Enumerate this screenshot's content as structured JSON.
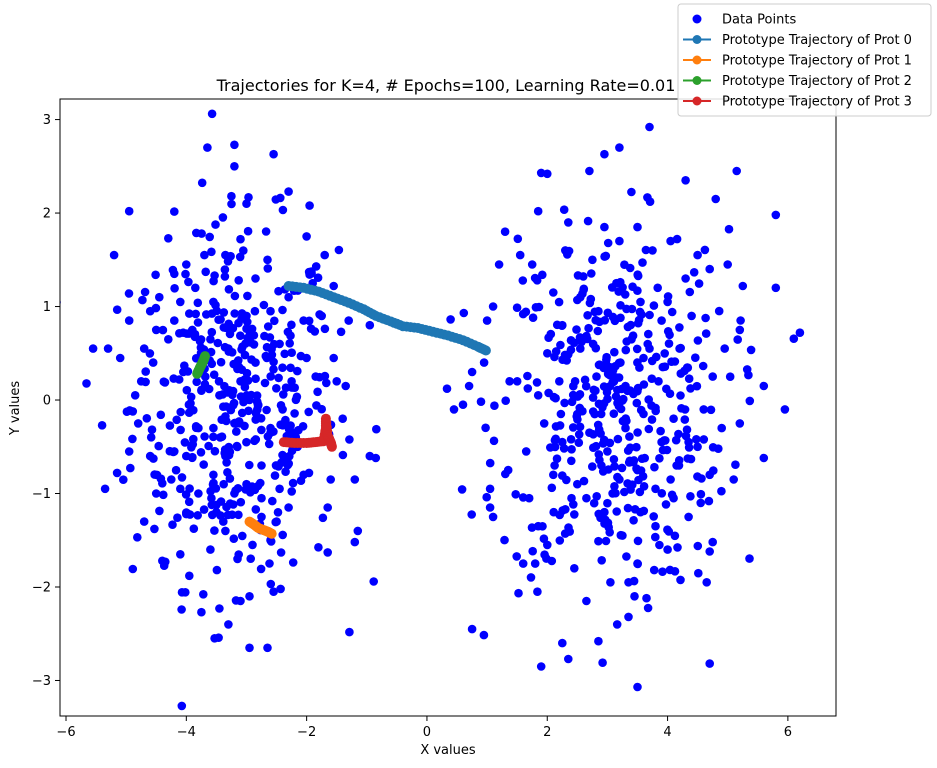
{
  "chart_data": {
    "type": "scatter",
    "title": "Trajectories for K=4, # Epochs=100, Learning Rate=0.01",
    "xlabel": "X values",
    "ylabel": "Y values",
    "xlim": [
      -6.1,
      6.8
    ],
    "ylim": [
      -3.38,
      3.22
    ],
    "xticks": [
      -6,
      -4,
      -2,
      0,
      2,
      4,
      6
    ],
    "yticks": [
      -3,
      -2,
      -1,
      0,
      1,
      2,
      3
    ],
    "grid": false,
    "legend_position": "top-right",
    "series": [
      {
        "name": "Data Points",
        "kind": "scatter",
        "color": "#0000ff",
        "clusters": [
          {
            "center": [
              -3.2,
              -0.05
            ],
            "spread": [
              0.85,
              0.95
            ],
            "count": 400
          },
          {
            "center": [
              3.1,
              -0.1
            ],
            "spread": [
              0.95,
              0.95
            ],
            "count": 400
          }
        ],
        "points": [
          [
            -5.55,
            0.55
          ],
          [
            -5.4,
            -0.27
          ],
          [
            -5.35,
            -0.95
          ],
          [
            -5.3,
            0.55
          ],
          [
            -5.2,
            1.55
          ],
          [
            -5.15,
            -0.78
          ],
          [
            -4.95,
            2.02
          ],
          [
            -4.85,
            0.05
          ],
          [
            -4.7,
            -1.3
          ],
          [
            -4.6,
            0.95
          ],
          [
            -4.4,
            -1.72
          ],
          [
            -4.3,
            1.73
          ],
          [
            -4.2,
            -0.55
          ],
          [
            -3.65,
            2.7
          ],
          [
            -3.2,
            2.73
          ],
          [
            -3.2,
            2.5
          ],
          [
            -3.25,
            2.18
          ],
          [
            -3.0,
            2.1
          ],
          [
            -2.55,
            2.63
          ],
          [
            -2.3,
            2.23
          ],
          [
            -1.95,
            2.08
          ],
          [
            -2.0,
            1.75
          ],
          [
            -1.7,
            1.55
          ],
          [
            -1.55,
            1.22
          ],
          [
            -1.3,
            0.85
          ],
          [
            -1.2,
            -0.85
          ],
          [
            -1.2,
            -1.52
          ],
          [
            -1.15,
            -1.4
          ],
          [
            -0.95,
            -0.6
          ],
          [
            -0.85,
            -0.62
          ],
          [
            -0.95,
            0.8
          ],
          [
            -2.0,
            0.45
          ],
          [
            -1.85,
            0.25
          ],
          [
            -1.7,
            -0.35
          ],
          [
            -1.5,
            0.2
          ],
          [
            -1.4,
            -0.2
          ],
          [
            -1.6,
            -0.85
          ],
          [
            -1.65,
            -1.15
          ],
          [
            -1.65,
            -1.63
          ],
          [
            -2.5,
            -1.3
          ],
          [
            -2.6,
            -1.5
          ],
          [
            -2.55,
            -2.05
          ],
          [
            -2.65,
            -2.65
          ],
          [
            -2.95,
            -2.65
          ],
          [
            -2.95,
            -2.1
          ],
          [
            -3.1,
            -2.15
          ],
          [
            -3.3,
            -2.4
          ],
          [
            -3.45,
            -2.23
          ],
          [
            -3.6,
            -1.6
          ],
          [
            -3.75,
            -2.27
          ],
          [
            -3.95,
            -1.88
          ],
          [
            -4.1,
            -1.65
          ],
          [
            -4.35,
            -1.73
          ],
          [
            -4.0,
            -1.22
          ],
          [
            -4.1,
            -0.95
          ],
          [
            -3.8,
            -1.0
          ],
          [
            -3.5,
            -1.2
          ],
          [
            -3.2,
            -1.0
          ],
          [
            -3.0,
            -0.9
          ],
          [
            -2.75,
            -0.7
          ],
          [
            -2.6,
            -0.3
          ],
          [
            -2.4,
            -0.1
          ],
          [
            -2.25,
            0.2
          ],
          [
            -2.15,
            -0.5
          ],
          [
            -2.05,
            -0.8
          ],
          [
            -2.3,
            -1.15
          ],
          [
            -2.75,
            -1.05
          ],
          [
            -3.35,
            -0.6
          ],
          [
            -3.55,
            -0.3
          ],
          [
            -3.75,
            0.1
          ],
          [
            -4.05,
            0.3
          ],
          [
            -4.3,
            0.65
          ],
          [
            -4.55,
            0.4
          ],
          [
            -4.75,
            0.2
          ],
          [
            -4.95,
            0.85
          ],
          [
            -5.1,
            0.45
          ],
          [
            -4.2,
            1.35
          ],
          [
            -4.0,
            1.45
          ],
          [
            -3.85,
            1.2
          ],
          [
            -3.55,
            1.05
          ],
          [
            -3.35,
            1.55
          ],
          [
            -3.1,
            1.72
          ],
          [
            -2.85,
            1.3
          ],
          [
            -2.6,
            0.95
          ],
          [
            -2.45,
            0.6
          ],
          [
            -2.85,
            0.4
          ],
          [
            -3.1,
            0.2
          ],
          [
            -3.3,
            0.55
          ],
          [
            -3.6,
            0.65
          ],
          [
            -3.9,
            0.75
          ],
          [
            -4.2,
            0.85
          ],
          [
            -4.5,
            0.75
          ],
          [
            -4.7,
            0.55
          ],
          [
            -3.8,
            -0.3
          ],
          [
            -4.0,
            -0.6
          ],
          [
            -4.25,
            -0.85
          ],
          [
            -4.5,
            -1.0
          ],
          [
            -4.6,
            -0.6
          ],
          [
            -4.8,
            -0.25
          ],
          [
            -3.55,
            -0.8
          ],
          [
            -3.35,
            -1.4
          ],
          [
            -3.15,
            -1.7
          ],
          [
            -2.9,
            -1.55
          ],
          [
            -2.75,
            -1.25
          ],
          [
            -2.45,
            -0.95
          ],
          [
            -2.2,
            -0.35
          ],
          [
            -2.95,
            0.0
          ],
          [
            -3.2,
            -0.25
          ],
          [
            -3.45,
            0.05
          ],
          [
            -2.05,
            0.85
          ],
          [
            -1.75,
            0.9
          ],
          [
            -1.55,
            0.45
          ],
          [
            -1.35,
            0.15
          ],
          [
            -1.9,
            1.25
          ],
          [
            -2.3,
            1.1
          ],
          [
            -2.65,
            1.5
          ],
          [
            -3.0,
            0.9
          ],
          [
            -3.7,
            1.55
          ],
          [
            -4.1,
            1.05
          ],
          [
            -4.45,
            1.1
          ],
          [
            1.9,
            -2.85
          ],
          [
            2.25,
            -2.6
          ],
          [
            2.35,
            -2.77
          ],
          [
            2.85,
            -2.58
          ],
          [
            3.5,
            -3.07
          ],
          [
            4.7,
            -2.82
          ],
          [
            0.75,
            -2.45
          ],
          [
            1.85,
            -1.35
          ],
          [
            2.0,
            -1.55
          ],
          [
            2.45,
            -1.8
          ],
          [
            2.65,
            -2.15
          ],
          [
            3.05,
            -1.95
          ],
          [
            3.35,
            -1.95
          ],
          [
            3.35,
            -2.32
          ],
          [
            3.45,
            -2.1
          ],
          [
            3.65,
            -2.12
          ],
          [
            3.5,
            -1.75
          ],
          [
            4.0,
            -1.6
          ],
          [
            4.65,
            -1.95
          ],
          [
            4.7,
            -1.62
          ],
          [
            4.75,
            -1.52
          ],
          [
            1.05,
            -1.15
          ],
          [
            1.1,
            -1.25
          ],
          [
            1.05,
            -0.95
          ],
          [
            1.35,
            -0.75
          ],
          [
            1.6,
            -1.75
          ],
          [
            1.8,
            -1.75
          ],
          [
            1.7,
            -1.05
          ],
          [
            2.1,
            -0.8
          ],
          [
            2.5,
            -0.9
          ],
          [
            2.9,
            -0.7
          ],
          [
            3.2,
            -0.85
          ],
          [
            3.5,
            -0.75
          ],
          [
            3.8,
            -0.95
          ],
          [
            4.1,
            -1.05
          ],
          [
            4.35,
            -1.25
          ],
          [
            4.55,
            -1.1
          ],
          [
            4.7,
            -0.8
          ],
          [
            5.1,
            -0.85
          ],
          [
            4.9,
            -0.3
          ],
          [
            5.2,
            -0.25
          ],
          [
            5.6,
            -0.62
          ],
          [
            5.95,
            -0.1
          ],
          [
            0.45,
            -0.1
          ],
          [
            0.6,
            -0.05
          ],
          [
            0.7,
            0.15
          ],
          [
            0.75,
            0.3
          ],
          [
            0.95,
            0.4
          ],
          [
            1.0,
            0.85
          ],
          [
            1.1,
            1.0
          ],
          [
            1.2,
            1.45
          ],
          [
            1.3,
            1.8
          ],
          [
            1.55,
            1.55
          ],
          [
            1.75,
            1.45
          ],
          [
            1.85,
            2.02
          ],
          [
            1.9,
            2.43
          ],
          [
            2.0,
            2.42
          ],
          [
            2.3,
            1.6
          ],
          [
            2.35,
            1.9
          ],
          [
            2.7,
            2.45
          ],
          [
            2.95,
            2.63
          ],
          [
            3.2,
            2.7
          ],
          [
            3.7,
            2.92
          ],
          [
            4.3,
            2.35
          ],
          [
            4.5,
            1.55
          ],
          [
            4.8,
            2.15
          ],
          [
            5.15,
            2.45
          ],
          [
            5.25,
            1.22
          ],
          [
            5.8,
            1.98
          ],
          [
            5.8,
            1.2
          ],
          [
            6.2,
            0.72
          ],
          [
            5.6,
            0.15
          ],
          [
            5.2,
            0.75
          ],
          [
            4.95,
            0.55
          ],
          [
            5.0,
            1.45
          ],
          [
            4.7,
            1.4
          ],
          [
            4.3,
            1.3
          ],
          [
            4.05,
            1.7
          ],
          [
            3.75,
            1.6
          ],
          [
            3.5,
            1.85
          ],
          [
            3.2,
            1.7
          ],
          [
            2.95,
            1.85
          ],
          [
            2.75,
            1.5
          ],
          [
            2.55,
            1.1
          ],
          [
            2.25,
            0.8
          ],
          [
            2.0,
            0.5
          ],
          [
            2.2,
            0.2
          ],
          [
            2.5,
            -0.15
          ],
          [
            2.8,
            0.1
          ],
          [
            3.05,
            0.35
          ],
          [
            3.3,
            0.15
          ],
          [
            3.6,
            0.45
          ],
          [
            3.85,
            0.2
          ],
          [
            4.1,
            -0.2
          ],
          [
            4.35,
            -0.45
          ],
          [
            4.6,
            -0.1
          ],
          [
            4.2,
            0.55
          ],
          [
            3.9,
            0.85
          ],
          [
            3.55,
            1.05
          ],
          [
            3.15,
            1.25
          ],
          [
            2.85,
            0.95
          ],
          [
            2.55,
            0.55
          ],
          [
            2.25,
            -0.45
          ],
          [
            1.95,
            -0.25
          ],
          [
            1.65,
            -0.55
          ],
          [
            1.5,
            0.2
          ],
          [
            2.7,
            -0.35
          ],
          [
            3.0,
            -0.55
          ],
          [
            3.3,
            -0.3
          ],
          [
            3.6,
            -0.15
          ],
          [
            3.9,
            -0.45
          ],
          [
            4.15,
            -0.7
          ],
          [
            2.4,
            -0.65
          ],
          [
            2.65,
            -1.05
          ],
          [
            2.95,
            -1.2
          ],
          [
            3.25,
            -1.45
          ],
          [
            3.55,
            -1.2
          ],
          [
            3.8,
            -1.35
          ],
          [
            4.05,
            -0.85
          ],
          [
            4.5,
            -0.5
          ],
          [
            1.85,
            0.05
          ],
          [
            2.1,
            1.15
          ],
          [
            3.4,
            0.65
          ],
          [
            3.7,
            0.55
          ],
          [
            4.0,
            1.05
          ],
          [
            4.4,
            0.9
          ],
          [
            4.75,
            0.25
          ]
        ]
      },
      {
        "name": "Prototype Trajectory of Prot 0",
        "kind": "line",
        "color": "#1f77b4",
        "points": [
          [
            -2.3,
            1.22
          ],
          [
            -2.05,
            1.2
          ],
          [
            -1.8,
            1.16
          ],
          [
            -1.55,
            1.1
          ],
          [
            -1.3,
            1.04
          ],
          [
            -1.05,
            0.97
          ],
          [
            -0.85,
            0.9
          ],
          [
            -0.6,
            0.84
          ],
          [
            -0.4,
            0.79
          ],
          [
            -0.15,
            0.77
          ],
          [
            0.1,
            0.73
          ],
          [
            0.35,
            0.69
          ],
          [
            0.6,
            0.64
          ],
          [
            0.85,
            0.57
          ],
          [
            0.98,
            0.53
          ]
        ]
      },
      {
        "name": "Prototype Trajectory of Prot 1",
        "kind": "line",
        "color": "#ff7f0e",
        "points": [
          [
            -2.95,
            -1.3
          ],
          [
            -2.88,
            -1.33
          ],
          [
            -2.8,
            -1.37
          ],
          [
            -2.72,
            -1.39
          ],
          [
            -2.64,
            -1.41
          ],
          [
            -2.58,
            -1.43
          ]
        ]
      },
      {
        "name": "Prototype Trajectory of Prot 2",
        "kind": "line",
        "color": "#2ca02c",
        "points": [
          [
            -3.82,
            0.28
          ],
          [
            -3.8,
            0.31
          ],
          [
            -3.77,
            0.35
          ],
          [
            -3.74,
            0.39
          ],
          [
            -3.71,
            0.43
          ],
          [
            -3.69,
            0.47
          ]
        ]
      },
      {
        "name": "Prototype Trajectory of Prot 3",
        "kind": "line",
        "color": "#d62728",
        "points": [
          [
            -2.38,
            -0.45
          ],
          [
            -2.2,
            -0.46
          ],
          [
            -2.0,
            -0.46
          ],
          [
            -1.85,
            -0.45
          ],
          [
            -1.72,
            -0.44
          ],
          [
            -1.68,
            -0.3
          ],
          [
            -1.68,
            -0.2
          ],
          [
            -1.65,
            -0.38
          ],
          [
            -1.6,
            -0.45
          ],
          [
            -1.58,
            -0.5
          ]
        ]
      }
    ]
  }
}
